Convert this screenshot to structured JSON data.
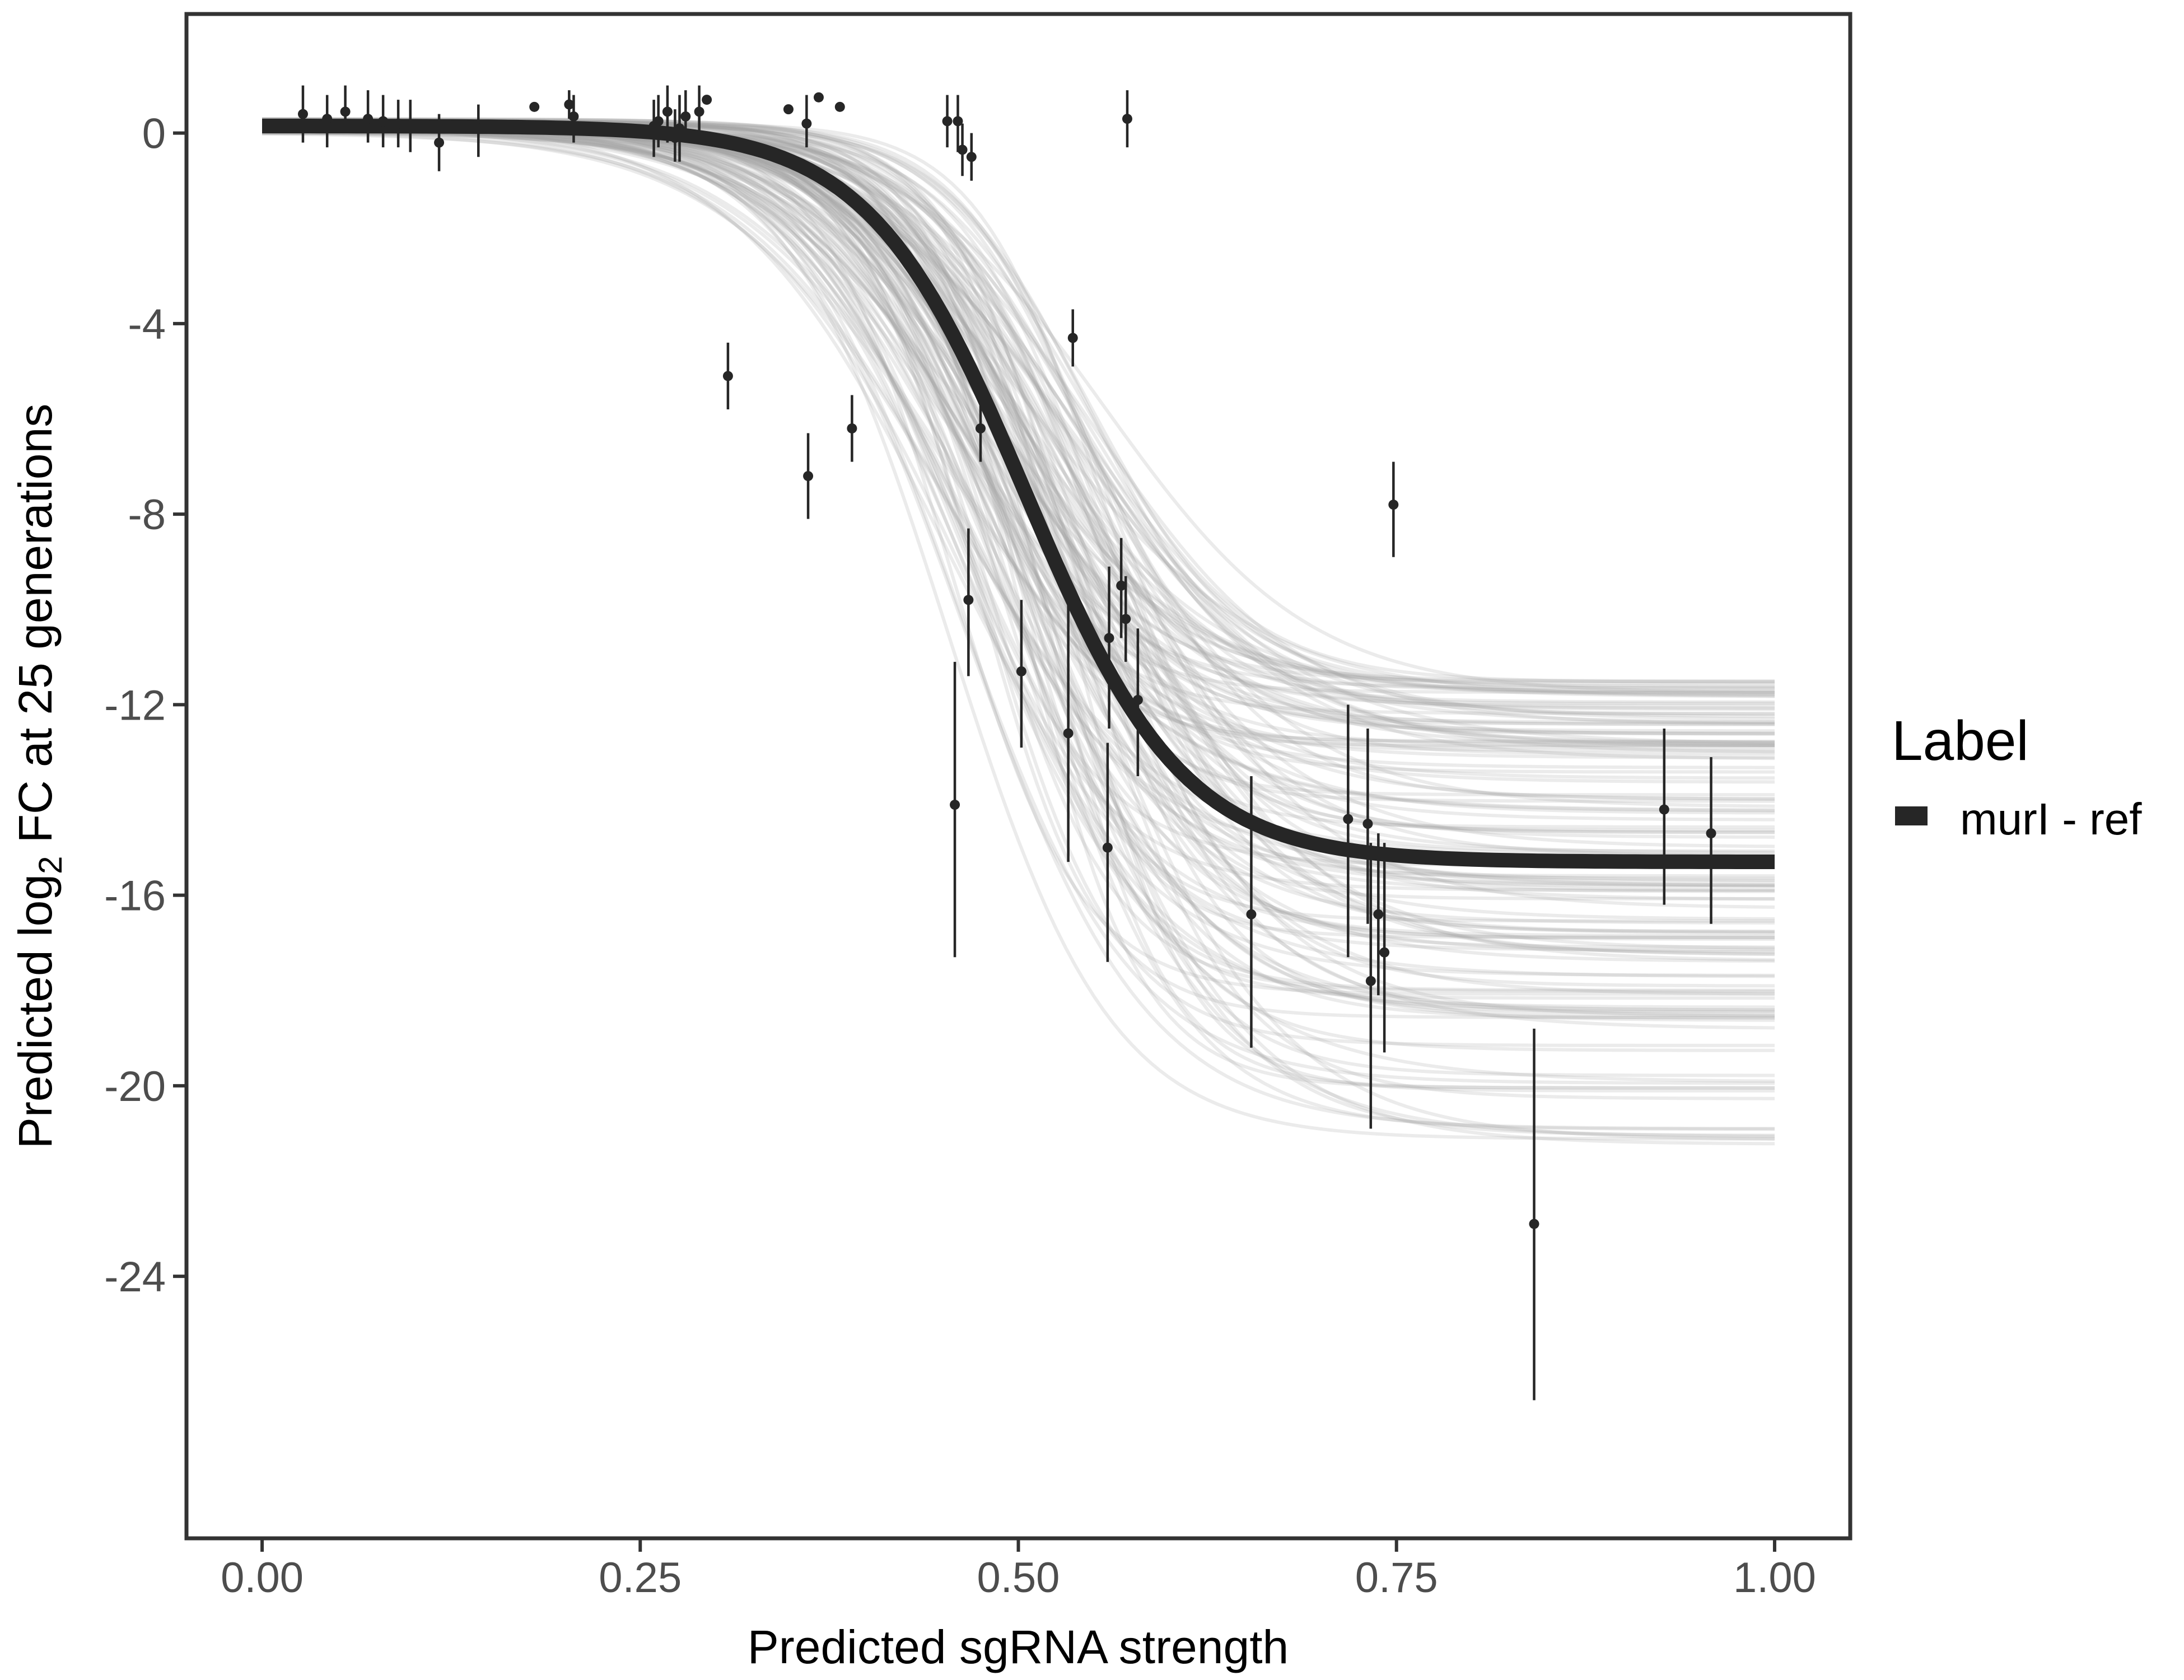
{
  "chart_data": {
    "type": "scatter",
    "title": "",
    "xlabel": "Predicted sgRNA strength",
    "ylabel_parts": {
      "before": "Predicted  log",
      "subscript": "2",
      "after": " FC at 25 generations"
    },
    "xlim": [
      -0.05,
      1.05
    ],
    "ylim": [
      -29.5,
      2.5
    ],
    "x_ticks": [
      0.0,
      0.25,
      0.5,
      0.75,
      1.0
    ],
    "x_tick_labels": [
      "0.00",
      "0.25",
      "0.50",
      "0.75",
      "1.00"
    ],
    "y_ticks": [
      0,
      -4,
      -8,
      -12,
      -16,
      -20,
      -24
    ],
    "y_tick_labels": [
      "0",
      "-4",
      "-8",
      "-12",
      "-16",
      "-20",
      "-24"
    ],
    "grid": false,
    "legend": {
      "title": "Label",
      "position": "right",
      "entries": [
        {
          "label": "murI - ref",
          "color": "#262626"
        }
      ]
    },
    "fit_curve": {
      "name": "murI - ref",
      "model": "logistic",
      "upper": 0.15,
      "lower": -15.3,
      "midpoint": 0.505,
      "scale": 0.052,
      "color": "#262626"
    },
    "posterior_band": {
      "color": "#a6a6a6",
      "lower_range": [
        -21.5,
        -11.5
      ],
      "midpoint_range": [
        0.45,
        0.56
      ],
      "scale_range": [
        0.038,
        0.075
      ],
      "draws": 140
    },
    "points": [
      {
        "x": 0.027,
        "y": 0.4,
        "lo": -0.2,
        "hi": 1.0
      },
      {
        "x": 0.043,
        "y": 0.3,
        "lo": -0.3,
        "hi": 0.8
      },
      {
        "x": 0.055,
        "y": 0.45,
        "lo": 0.0,
        "hi": 1.0
      },
      {
        "x": 0.07,
        "y": 0.3,
        "lo": -0.2,
        "hi": 0.9
      },
      {
        "x": 0.08,
        "y": 0.25,
        "lo": -0.3,
        "hi": 0.8
      },
      {
        "x": 0.09,
        "y": 0.2,
        "lo": -0.3,
        "hi": 0.7
      },
      {
        "x": 0.098,
        "y": 0.15,
        "lo": -0.4,
        "hi": 0.7
      },
      {
        "x": 0.117,
        "y": -0.2,
        "lo": -0.8,
        "hi": 0.4
      },
      {
        "x": 0.143,
        "y": 0.1,
        "lo": -0.5,
        "hi": 0.6
      },
      {
        "x": 0.18,
        "y": 0.55
      },
      {
        "x": 0.203,
        "y": 0.6,
        "lo": 0.3,
        "hi": 0.9
      },
      {
        "x": 0.206,
        "y": 0.35,
        "lo": -0.2,
        "hi": 0.8
      },
      {
        "x": 0.259,
        "y": 0.15,
        "lo": -0.5,
        "hi": 0.7
      },
      {
        "x": 0.262,
        "y": 0.25,
        "lo": -0.3,
        "hi": 0.8
      },
      {
        "x": 0.268,
        "y": 0.45,
        "lo": -0.2,
        "hi": 1.0
      },
      {
        "x": 0.273,
        "y": -0.1,
        "lo": -0.6,
        "hi": 0.5
      },
      {
        "x": 0.276,
        "y": 0.1,
        "lo": -0.6,
        "hi": 0.8
      },
      {
        "x": 0.28,
        "y": 0.35,
        "lo": -0.2,
        "hi": 0.9
      },
      {
        "x": 0.289,
        "y": 0.45,
        "lo": -0.1,
        "hi": 1.0
      },
      {
        "x": 0.294,
        "y": 0.7
      },
      {
        "x": 0.308,
        "y": -5.1,
        "lo": -5.8,
        "hi": -4.4
      },
      {
        "x": 0.348,
        "y": 0.5
      },
      {
        "x": 0.36,
        "y": 0.2,
        "lo": -0.3,
        "hi": 0.8
      },
      {
        "x": 0.361,
        "y": -7.2,
        "lo": -8.1,
        "hi": -6.3
      },
      {
        "x": 0.368,
        "y": 0.75
      },
      {
        "x": 0.382,
        "y": 0.55
      },
      {
        "x": 0.39,
        "y": -6.2,
        "lo": -6.9,
        "hi": -5.5
      },
      {
        "x": 0.453,
        "y": 0.25,
        "lo": -0.3,
        "hi": 0.8
      },
      {
        "x": 0.458,
        "y": -14.1,
        "lo": -17.3,
        "hi": -11.1
      },
      {
        "x": 0.46,
        "y": 0.25,
        "lo": -0.4,
        "hi": 0.8
      },
      {
        "x": 0.463,
        "y": -0.35,
        "lo": -0.9,
        "hi": 0.2
      },
      {
        "x": 0.467,
        "y": -9.8,
        "lo": -11.4,
        "hi": -8.3
      },
      {
        "x": 0.469,
        "y": -0.5,
        "lo": -1.0,
        "hi": 0.0
      },
      {
        "x": 0.475,
        "y": -6.2,
        "lo": -6.9,
        "hi": -5.5
      },
      {
        "x": 0.502,
        "y": -11.3,
        "lo": -12.9,
        "hi": -9.8
      },
      {
        "x": 0.533,
        "y": -12.6,
        "lo": -15.3,
        "hi": -9.9
      },
      {
        "x": 0.536,
        "y": -4.3,
        "lo": -4.9,
        "hi": -3.7
      },
      {
        "x": 0.559,
        "y": -15.0,
        "lo": -17.4,
        "hi": -12.8
      },
      {
        "x": 0.56,
        "y": -10.6,
        "lo": -12.5,
        "hi": -9.1
      },
      {
        "x": 0.568,
        "y": -9.5,
        "lo": -10.6,
        "hi": -8.5
      },
      {
        "x": 0.571,
        "y": -10.2,
        "lo": -11.1,
        "hi": -9.3
      },
      {
        "x": 0.572,
        "y": 0.3,
        "lo": -0.3,
        "hi": 0.9
      },
      {
        "x": 0.579,
        "y": -11.9,
        "lo": -13.5,
        "hi": -10.4
      },
      {
        "x": 0.654,
        "y": -16.4,
        "lo": -19.2,
        "hi": -13.5
      },
      {
        "x": 0.718,
        "y": -14.4,
        "lo": -17.3,
        "hi": -12.0
      },
      {
        "x": 0.731,
        "y": -14.5,
        "lo": -16.6,
        "hi": -12.5
      },
      {
        "x": 0.733,
        "y": -17.8,
        "lo": -20.9,
        "hi": -14.9
      },
      {
        "x": 0.738,
        "y": -16.4,
        "lo": -18.1,
        "hi": -14.7
      },
      {
        "x": 0.742,
        "y": -17.2,
        "lo": -19.3,
        "hi": -14.9
      },
      {
        "x": 0.748,
        "y": -7.8,
        "lo": -8.9,
        "hi": -6.9
      },
      {
        "x": 0.841,
        "y": -22.9,
        "lo": -26.6,
        "hi": -18.8
      },
      {
        "x": 0.927,
        "y": -14.2,
        "lo": -16.2,
        "hi": -12.5
      },
      {
        "x": 0.958,
        "y": -14.7,
        "lo": -16.6,
        "hi": -13.1
      }
    ]
  }
}
